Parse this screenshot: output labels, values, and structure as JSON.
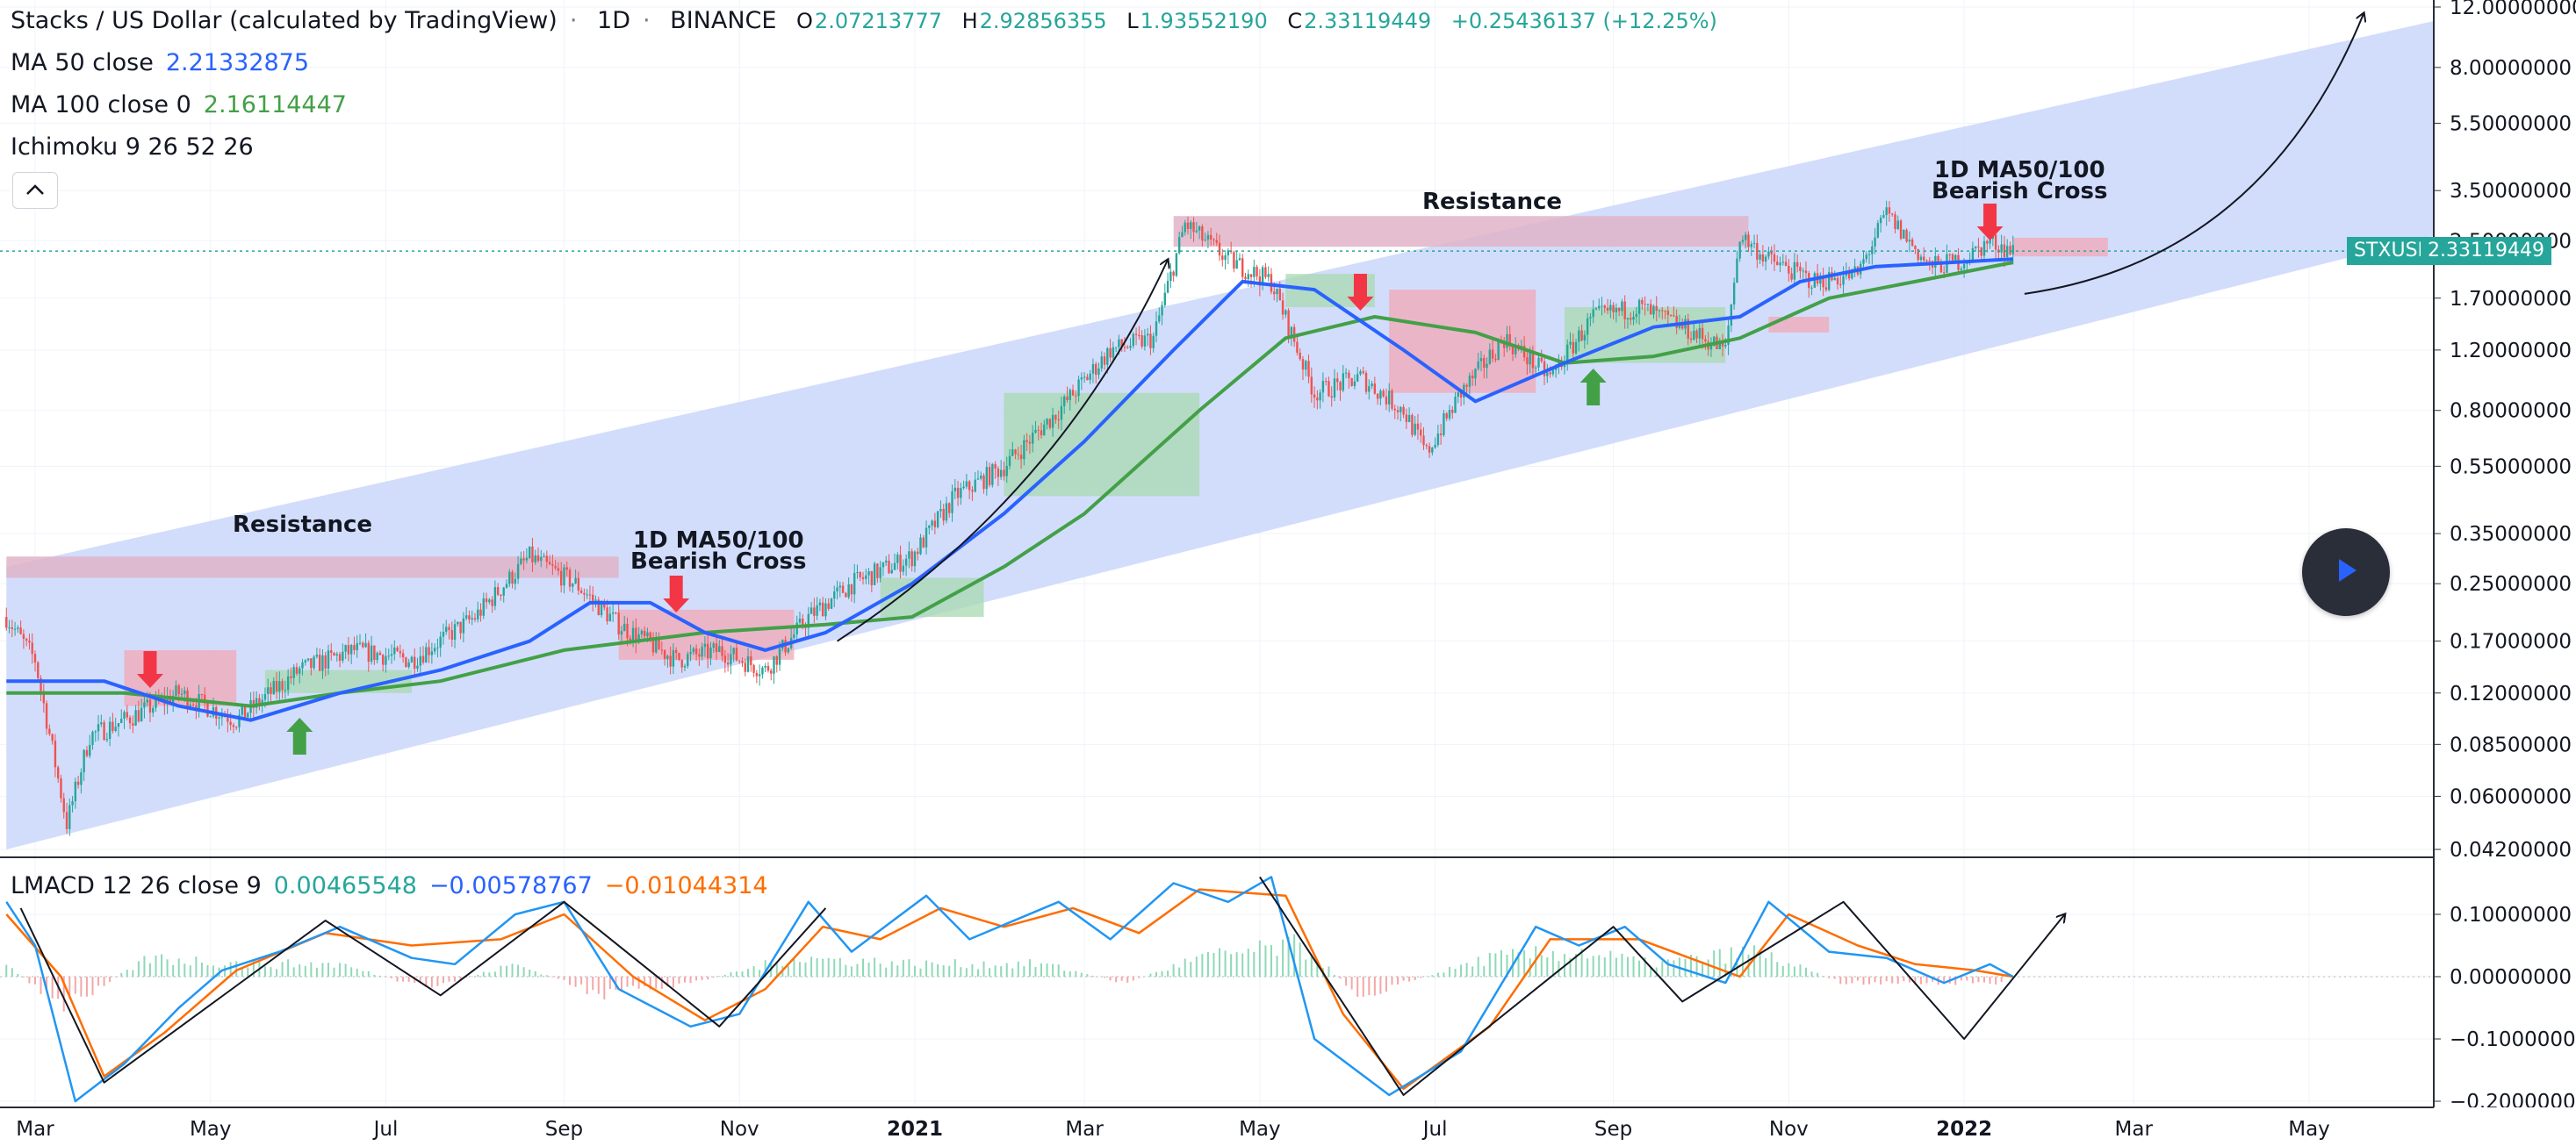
{
  "header": {
    "symbol_title": "Stacks / US Dollar (calculated by TradingView)",
    "interval": "1D",
    "exchange": "BINANCE",
    "open_label": "O",
    "open": "2.07213777",
    "high_label": "H",
    "high": "2.92856355",
    "low_label": "L",
    "low": "1.93552190",
    "close_label": "C",
    "close": "2.33119449",
    "change": "+0.25436137 (+12.25%)"
  },
  "indicators": {
    "ma50": {
      "label": "MA 50 close",
      "value": "2.21332875"
    },
    "ma100": {
      "label": "MA 100 close 0",
      "value": "2.16114447"
    },
    "ichimoku": {
      "label": "Ichimoku 9 26 52 26"
    },
    "lmacd": {
      "label": "LMACD 12 26 close 9",
      "v1": "0.00465548",
      "v2": "−0.00578767",
      "v3": "−0.01044314"
    }
  },
  "price_tag": {
    "symbol": "STXUSD",
    "value": "2.33119449"
  },
  "annotations": {
    "resistance_left": "Resistance",
    "resistance_right": "Resistance",
    "cross_left_line1": "1D MA50/100",
    "cross_left_line2": "Bearish Cross",
    "cross_right_line1": "1D MA50/100",
    "cross_right_line2": "Bearish Cross"
  },
  "colors": {
    "up": "#26a69a",
    "down": "#ef5350",
    "ma50": "#2962ff",
    "ma100": "#43a047",
    "channel": "#cad7fb",
    "resistance": "#e0b4c8",
    "macd": "#2196f3",
    "signal": "#ff6d00",
    "arrow_up": "#43a047",
    "arrow_down": "#f23645"
  },
  "icons": {
    "collapse": "chevron-up-icon",
    "play": "play-icon"
  },
  "chart_data": [
    {
      "type": "candlestick",
      "title": "Stacks / US Dollar (calculated by TradingView)",
      "scale": "log",
      "y_ticks": [
        "12.00000000",
        "8.00000000",
        "5.50000000",
        "3.50000000",
        "2.50000000",
        "1.70000000",
        "1.20000000",
        "0.80000000",
        "0.55000000",
        "0.35000000",
        "0.25000000",
        "0.17000000",
        "0.12000000",
        "0.08500000",
        "0.06000000",
        "0.04200000"
      ],
      "y_tick_values": [
        12,
        8,
        5.5,
        3.5,
        2.5,
        1.7,
        1.2,
        0.8,
        0.55,
        0.35,
        0.25,
        0.17,
        0.12,
        0.085,
        0.06,
        0.042
      ],
      "ylim": [
        0.042,
        12
      ],
      "x_ticks": [
        "Mar",
        "May",
        "Jul",
        "Sep",
        "Nov",
        "2021",
        "Mar",
        "May",
        "Jul",
        "Sep",
        "Nov",
        "2022",
        "Mar",
        "May"
      ],
      "price_path": [
        [
          "2020-02-20",
          0.2
        ],
        [
          "2020-03-01",
          0.15
        ],
        [
          "2020-03-12",
          0.05
        ],
        [
          "2020-03-20",
          0.09
        ],
        [
          "2020-04-01",
          0.1
        ],
        [
          "2020-04-20",
          0.12
        ],
        [
          "2020-05-10",
          0.1
        ],
        [
          "2020-06-01",
          0.14
        ],
        [
          "2020-06-20",
          0.16
        ],
        [
          "2020-07-10",
          0.15
        ],
        [
          "2020-08-01",
          0.2
        ],
        [
          "2020-08-20",
          0.3
        ],
        [
          "2020-09-05",
          0.25
        ],
        [
          "2020-09-20",
          0.19
        ],
        [
          "2020-10-10",
          0.15
        ],
        [
          "2020-10-25",
          0.16
        ],
        [
          "2020-11-10",
          0.14
        ],
        [
          "2020-11-25",
          0.2
        ],
        [
          "2020-12-10",
          0.25
        ],
        [
          "2020-12-31",
          0.3
        ],
        [
          "2021-01-15",
          0.45
        ],
        [
          "2021-02-01",
          0.55
        ],
        [
          "2021-02-20",
          0.8
        ],
        [
          "2021-03-10",
          1.2
        ],
        [
          "2021-03-25",
          1.3
        ],
        [
          "2021-04-05",
          2.8
        ],
        [
          "2021-04-20",
          2.2
        ],
        [
          "2021-05-05",
          1.9
        ],
        [
          "2021-05-20",
          0.9
        ],
        [
          "2021-06-05",
          1.0
        ],
        [
          "2021-06-20",
          0.8
        ],
        [
          "2021-06-28",
          0.6
        ],
        [
          "2021-07-10",
          0.9
        ],
        [
          "2021-07-25",
          1.3
        ],
        [
          "2021-08-10",
          1.0
        ],
        [
          "2021-08-25",
          1.5
        ],
        [
          "2021-09-10",
          1.6
        ],
        [
          "2021-09-25",
          1.4
        ],
        [
          "2021-10-10",
          1.2
        ],
        [
          "2021-10-15",
          2.6
        ],
        [
          "2021-10-25",
          2.2
        ],
        [
          "2021-11-10",
          1.9
        ],
        [
          "2021-11-25",
          2.0
        ],
        [
          "2021-12-05",
          3.0
        ],
        [
          "2021-12-20",
          2.1
        ],
        [
          "2022-01-01",
          2.2
        ],
        [
          "2022-01-10",
          2.5
        ],
        [
          "2022-01-18",
          2.33
        ]
      ],
      "series": [
        {
          "name": "MA 50 close",
          "points": [
            [
              "2020-02-20",
              0.13
            ],
            [
              "2020-03-25",
              0.13
            ],
            [
              "2020-04-20",
              0.11
            ],
            [
              "2020-05-15",
              0.1
            ],
            [
              "2020-06-15",
              0.12
            ],
            [
              "2020-07-20",
              0.14
            ],
            [
              "2020-08-20",
              0.17
            ],
            [
              "2020-09-10",
              0.22
            ],
            [
              "2020-10-01",
              0.22
            ],
            [
              "2020-10-20",
              0.18
            ],
            [
              "2020-11-10",
              0.16
            ],
            [
              "2020-12-01",
              0.18
            ],
            [
              "2020-12-31",
              0.25
            ],
            [
              "2021-02-01",
              0.4
            ],
            [
              "2021-03-01",
              0.65
            ],
            [
              "2021-04-01",
              1.2
            ],
            [
              "2021-04-25",
              1.9
            ],
            [
              "2021-05-20",
              1.8
            ],
            [
              "2021-06-20",
              1.2
            ],
            [
              "2021-07-15",
              0.85
            ],
            [
              "2021-08-15",
              1.1
            ],
            [
              "2021-09-15",
              1.4
            ],
            [
              "2021-10-15",
              1.5
            ],
            [
              "2021-11-05",
              1.9
            ],
            [
              "2021-12-01",
              2.1
            ],
            [
              "2022-01-18",
              2.21
            ]
          ]
        },
        {
          "name": "MA 100 close 0",
          "points": [
            [
              "2020-02-20",
              0.12
            ],
            [
              "2020-04-01",
              0.12
            ],
            [
              "2020-05-15",
              0.11
            ],
            [
              "2020-06-15",
              0.12
            ],
            [
              "2020-07-20",
              0.13
            ],
            [
              "2020-09-01",
              0.16
            ],
            [
              "2020-10-20",
              0.18
            ],
            [
              "2020-12-01",
              0.19
            ],
            [
              "2020-12-31",
              0.2
            ],
            [
              "2021-02-01",
              0.28
            ],
            [
              "2021-03-01",
              0.4
            ],
            [
              "2021-04-10",
              0.8
            ],
            [
              "2021-05-10",
              1.3
            ],
            [
              "2021-06-10",
              1.5
            ],
            [
              "2021-07-15",
              1.35
            ],
            [
              "2021-08-15",
              1.1
            ],
            [
              "2021-09-15",
              1.15
            ],
            [
              "2021-10-15",
              1.3
            ],
            [
              "2021-11-15",
              1.7
            ],
            [
              "2021-12-15",
              1.9
            ],
            [
              "2022-01-18",
              2.16
            ]
          ]
        }
      ],
      "resistance_zones": [
        {
          "start": "2020-02-20",
          "end": "2020-09-20",
          "low": 0.26,
          "high": 0.3
        },
        {
          "start": "2021-04-01",
          "end": "2021-10-18",
          "low": 2.4,
          "high": 2.95
        }
      ],
      "channel": {
        "start": "2020-02-20",
        "end": "2022-06-15",
        "upper_start": 0.28,
        "upper_end": 11.0,
        "lower_start": 0.042,
        "lower_end": 2.6
      },
      "current_price": 2.33119449
    },
    {
      "type": "line",
      "title": "LMACD 12 26 close 9",
      "y_ticks": [
        "0.10000000",
        "0.00000000",
        "−0.10000000",
        "−0.20000000"
      ],
      "y_tick_values": [
        0.1,
        0.0,
        -0.1,
        -0.2
      ],
      "ylim": [
        -0.23,
        0.17
      ],
      "series": [
        {
          "name": "MACD",
          "points": [
            [
              "2020-02-20",
              0.12
            ],
            [
              "2020-03-01",
              0.05
            ],
            [
              "2020-03-15",
              -0.2
            ],
            [
              "2020-04-01",
              -0.14
            ],
            [
              "2020-04-20",
              -0.05
            ],
            [
              "2020-05-05",
              0.01
            ],
            [
              "2020-05-25",
              0.04
            ],
            [
              "2020-06-15",
              0.08
            ],
            [
              "2020-07-10",
              0.03
            ],
            [
              "2020-07-25",
              0.02
            ],
            [
              "2020-08-15",
              0.1
            ],
            [
              "2020-09-01",
              0.12
            ],
            [
              "2020-09-20",
              -0.02
            ],
            [
              "2020-10-15",
              -0.08
            ],
            [
              "2020-11-01",
              -0.06
            ],
            [
              "2020-11-25",
              0.12
            ],
            [
              "2020-12-10",
              0.04
            ],
            [
              "2021-01-05",
              0.13
            ],
            [
              "2021-01-20",
              0.06
            ],
            [
              "2021-02-20",
              0.12
            ],
            [
              "2021-03-10",
              0.06
            ],
            [
              "2021-04-01",
              0.15
            ],
            [
              "2021-04-20",
              0.12
            ],
            [
              "2021-05-05",
              0.16
            ],
            [
              "2021-05-20",
              -0.1
            ],
            [
              "2021-06-15",
              -0.19
            ],
            [
              "2021-07-10",
              -0.12
            ],
            [
              "2021-08-05",
              0.08
            ],
            [
              "2021-08-20",
              0.05
            ],
            [
              "2021-09-05",
              0.08
            ],
            [
              "2021-09-20",
              0.02
            ],
            [
              "2021-10-10",
              -0.01
            ],
            [
              "2021-10-25",
              0.12
            ],
            [
              "2021-11-15",
              0.04
            ],
            [
              "2021-12-05",
              0.03
            ],
            [
              "2021-12-25",
              -0.01
            ],
            [
              "2022-01-10",
              0.02
            ],
            [
              "2022-01-18",
              0.0
            ]
          ]
        },
        {
          "name": "Signal",
          "points": [
            [
              "2020-02-20",
              0.1
            ],
            [
              "2020-03-10",
              0.0
            ],
            [
              "2020-03-25",
              -0.16
            ],
            [
              "2020-04-15",
              -0.09
            ],
            [
              "2020-05-10",
              0.01
            ],
            [
              "2020-06-10",
              0.07
            ],
            [
              "2020-07-10",
              0.05
            ],
            [
              "2020-08-10",
              0.06
            ],
            [
              "2020-09-01",
              0.1
            ],
            [
              "2020-09-25",
              0.0
            ],
            [
              "2020-10-20",
              -0.07
            ],
            [
              "2020-11-10",
              -0.02
            ],
            [
              "2020-11-30",
              0.08
            ],
            [
              "2020-12-20",
              0.06
            ],
            [
              "2021-01-10",
              0.11
            ],
            [
              "2021-02-01",
              0.08
            ],
            [
              "2021-02-25",
              0.11
            ],
            [
              "2021-03-20",
              0.07
            ],
            [
              "2021-04-10",
              0.14
            ],
            [
              "2021-05-10",
              0.13
            ],
            [
              "2021-05-30",
              -0.06
            ],
            [
              "2021-06-20",
              -0.18
            ],
            [
              "2021-07-20",
              -0.08
            ],
            [
              "2021-08-10",
              0.06
            ],
            [
              "2021-09-10",
              0.06
            ],
            [
              "2021-10-15",
              0.0
            ],
            [
              "2021-11-01",
              0.1
            ],
            [
              "2021-11-25",
              0.05
            ],
            [
              "2021-12-15",
              0.02
            ],
            [
              "2022-01-05",
              0.01
            ],
            [
              "2022-01-18",
              0.0
            ]
          ]
        }
      ],
      "histogram": [
        [
          "2020-02-20",
          0.02
        ],
        [
          "2020-03-10",
          -0.05
        ],
        [
          "2020-04-10",
          0.03
        ],
        [
          "2020-05-15",
          0.02
        ],
        [
          "2020-06-15",
          0.02
        ],
        [
          "2020-07-15",
          -0.02
        ],
        [
          "2020-08-15",
          0.02
        ],
        [
          "2020-09-15",
          -0.03
        ],
        [
          "2020-10-15",
          -0.01
        ],
        [
          "2020-11-20",
          0.03
        ],
        [
          "2021-01-05",
          0.02
        ],
        [
          "2021-02-15",
          0.02
        ],
        [
          "2021-03-15",
          -0.01
        ],
        [
          "2021-04-10",
          0.03
        ],
        [
          "2021-05-15",
          0.05
        ],
        [
          "2021-06-05",
          -0.03
        ],
        [
          "2021-07-20",
          0.03
        ],
        [
          "2021-08-20",
          0.04
        ],
        [
          "2021-09-15",
          0.02
        ],
        [
          "2021-10-20",
          0.04
        ],
        [
          "2021-11-20",
          -0.01
        ],
        [
          "2021-12-20",
          -0.01
        ],
        [
          "2022-01-15",
          -0.01
        ]
      ]
    }
  ]
}
